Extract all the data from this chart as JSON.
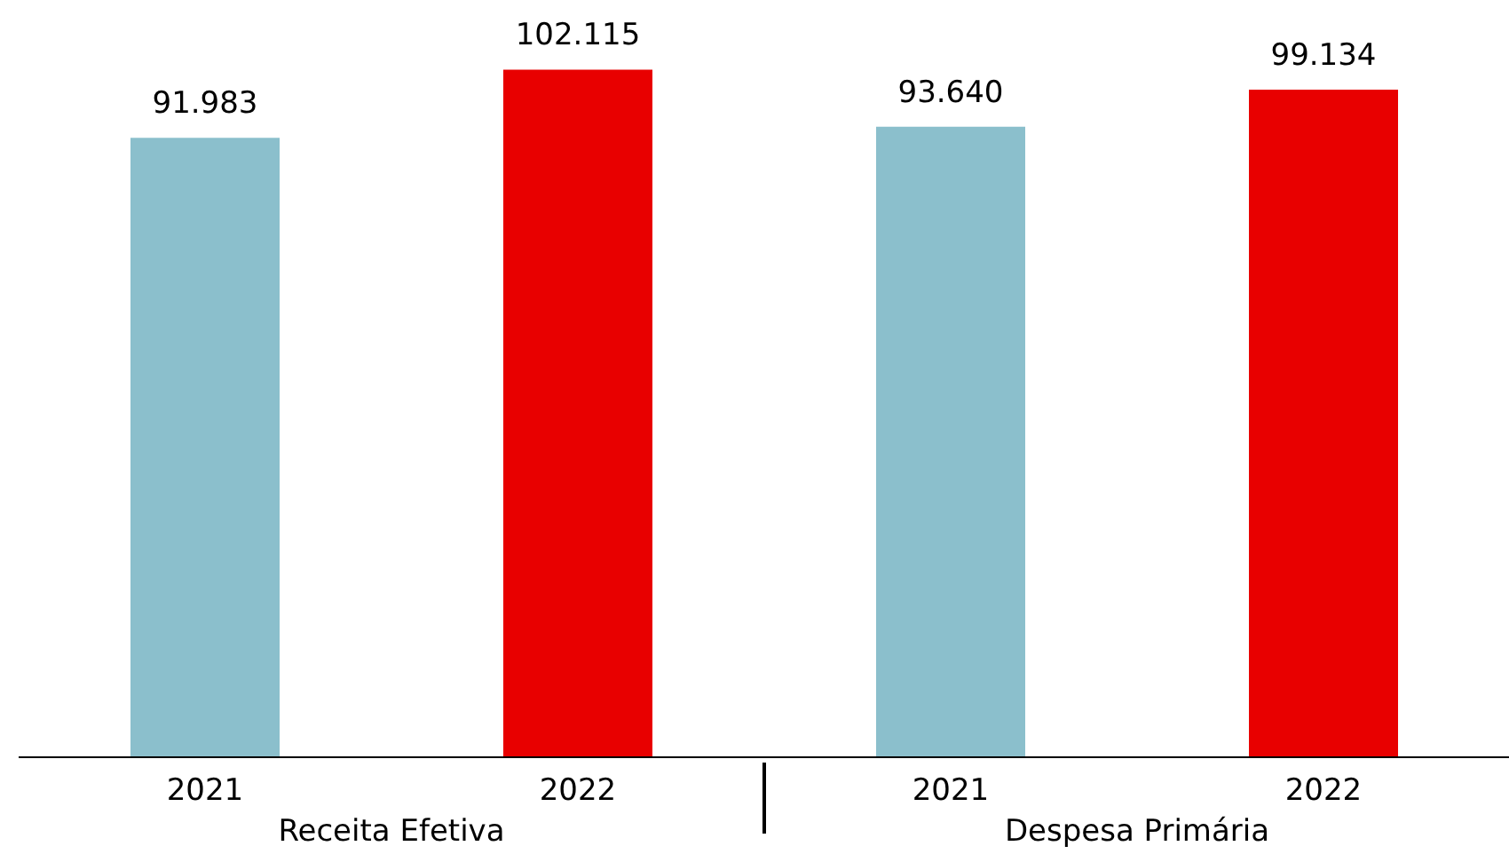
{
  "chart_data": {
    "type": "bar",
    "categories": [
      "Receita Efetiva",
      "Despesa Primária"
    ],
    "series": [
      {
        "name": "2021",
        "color": "#8bbfcc",
        "values": [
          91983,
          93640
        ],
        "value_labels": [
          "91.983",
          "93.640"
        ]
      },
      {
        "name": "2022",
        "color": "#e80000",
        "values": [
          102115,
          99134
        ],
        "value_labels": [
          "102.115",
          "99.134"
        ]
      }
    ],
    "tick_labels": "x",
    "grid": false
  }
}
